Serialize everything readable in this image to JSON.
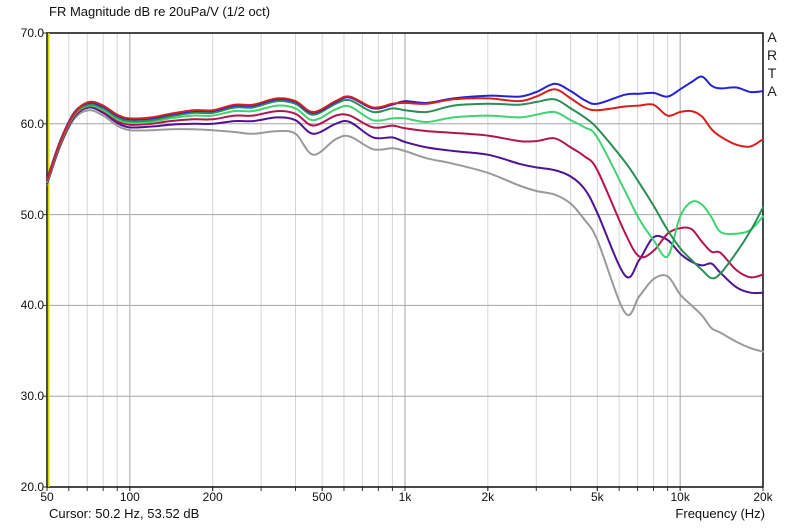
{
  "header": {
    "title": "FR Magnitude dB re 20uPa/V (1/2 oct)"
  },
  "watermark": {
    "letters": [
      "A",
      "R",
      "T",
      "A"
    ]
  },
  "footer": {
    "cursor_readout": "Cursor: 50.2 Hz, 53.52 dB",
    "axis_caption": "Frequency (Hz)"
  },
  "colors": {
    "background": "#ffffff",
    "plot_background": "#ffffff",
    "frame": "#1c1c1c",
    "grid_minor": "#d6d6d6",
    "grid_major": "#a6a6a6",
    "cursor_line": "#d4d400"
  },
  "chart_data": {
    "type": "line",
    "title": "FR Magnitude dB re 20uPa/V (1/2 oct)",
    "xlabel": "Frequency (Hz)",
    "ylabel": "FR Magnitude dB re 20uPa/V",
    "x_scale": "log",
    "xlim": [
      50,
      20000
    ],
    "ylim": [
      20,
      70
    ],
    "grid": "on",
    "legend": "none",
    "smoothing": "1/2 oct",
    "cursor": {
      "freq_hz": 50.2,
      "db": 53.52
    },
    "x_ticks": [
      {
        "f": 50,
        "label": "50"
      },
      {
        "f": 100,
        "label": "100"
      },
      {
        "f": 200,
        "label": "200"
      },
      {
        "f": 500,
        "label": "500"
      },
      {
        "f": 1000,
        "label": "1k"
      },
      {
        "f": 2000,
        "label": "2k"
      },
      {
        "f": 5000,
        "label": "5k"
      },
      {
        "f": 10000,
        "label": "10k"
      },
      {
        "f": 20000,
        "label": "20k"
      }
    ],
    "y_ticks": [
      {
        "db": 70,
        "label": "70.0"
      },
      {
        "db": 60,
        "label": "60.0"
      },
      {
        "db": 50,
        "label": "50.0"
      },
      {
        "db": 40,
        "label": "40.0"
      },
      {
        "db": 30,
        "label": "30.0"
      },
      {
        "db": 20,
        "label": "20.0"
      }
    ],
    "minor_grid_freqs": [
      60,
      70,
      80,
      90,
      200,
      300,
      400,
      500,
      600,
      700,
      800,
      900,
      2000,
      3000,
      4000,
      5000,
      6000,
      7000,
      8000,
      9000
    ],
    "major_grid_freqs": [
      100,
      1000,
      10000
    ],
    "major_grid_db": [
      30,
      40,
      50,
      60
    ],
    "x": [
      50,
      56,
      63,
      71,
      80,
      90,
      100,
      120,
      140,
      170,
      200,
      240,
      280,
      343,
      400,
      464,
      560,
      630,
      765,
      900,
      1000,
      1200,
      1500,
      2000,
      2600,
      3000,
      3500,
      4000,
      4500,
      5000,
      6300,
      7100,
      8000,
      9000,
      10000,
      11000,
      12000,
      13000,
      14000,
      16000,
      18000,
      20000
    ],
    "series": [
      {
        "name": "gray",
        "color": "#9a9a9a",
        "values": [
          53.3,
          57.6,
          60.6,
          61.5,
          60.9,
          59.8,
          59.3,
          59.3,
          59.4,
          59.4,
          59.3,
          59.1,
          58.9,
          59.2,
          58.9,
          56.6,
          58.3,
          58.6,
          57.2,
          57.3,
          57.0,
          56.2,
          55.6,
          54.6,
          53.2,
          52.6,
          52.2,
          51.2,
          49.4,
          47.2,
          39.2,
          41.0,
          42.9,
          43.2,
          41.2,
          40.0,
          38.9,
          37.5,
          37.0,
          36.0,
          35.3,
          34.9
        ]
      },
      {
        "name": "purple",
        "color": "#4f1292",
        "values": [
          53.4,
          57.7,
          60.8,
          61.8,
          61.2,
          60.1,
          59.6,
          59.7,
          59.9,
          60.0,
          60.0,
          60.3,
          60.3,
          60.7,
          60.4,
          58.9,
          60.0,
          60.2,
          58.5,
          58.5,
          58.0,
          57.4,
          57.0,
          56.6,
          55.6,
          55.2,
          54.9,
          54.2,
          52.8,
          50.2,
          43.3,
          45.0,
          47.5,
          47.2,
          45.7,
          44.8,
          44.4,
          44.6,
          43.6,
          42.0,
          41.4,
          41.4
        ]
      },
      {
        "name": "crimson",
        "color": "#b5134f",
        "values": [
          53.5,
          57.8,
          60.9,
          61.9,
          61.4,
          60.3,
          59.9,
          60.0,
          60.3,
          60.5,
          60.5,
          60.9,
          60.9,
          61.4,
          61.1,
          59.8,
          60.9,
          60.9,
          59.6,
          59.8,
          59.5,
          59.2,
          59.0,
          58.7,
          58.1,
          58.1,
          58.4,
          57.4,
          56.4,
          54.9,
          48.0,
          45.4,
          46.0,
          47.9,
          48.5,
          48.4,
          47.0,
          45.9,
          45.8,
          43.9,
          43.1,
          43.4
        ]
      },
      {
        "name": "light-green",
        "color": "#3ed474",
        "values": [
          53.6,
          57.9,
          61.0,
          62.0,
          61.5,
          60.5,
          60.1,
          60.2,
          60.6,
          60.9,
          60.9,
          61.4,
          61.4,
          62.0,
          61.7,
          60.4,
          61.6,
          61.9,
          60.4,
          60.6,
          60.6,
          60.2,
          60.7,
          60.9,
          60.7,
          61.0,
          61.3,
          60.4,
          59.6,
          58.5,
          52.6,
          49.5,
          47.2,
          45.4,
          49.8,
          51.4,
          51.1,
          49.7,
          48.1,
          47.9,
          48.3,
          49.8
        ]
      },
      {
        "name": "dark-green",
        "color": "#2a8f55",
        "values": [
          53.7,
          58.0,
          61.1,
          62.1,
          61.7,
          60.7,
          60.3,
          60.4,
          60.8,
          61.2,
          61.2,
          61.8,
          61.8,
          62.5,
          62.2,
          61.0,
          62.2,
          62.6,
          61.3,
          61.7,
          61.5,
          61.3,
          62.0,
          62.2,
          62.1,
          62.4,
          62.7,
          61.7,
          60.7,
          59.5,
          55.8,
          53.5,
          51.0,
          48.3,
          46.3,
          45.0,
          43.9,
          43.0,
          43.5,
          45.8,
          48.2,
          50.8
        ]
      },
      {
        "name": "blue",
        "color": "#2222d6",
        "values": [
          53.9,
          58.2,
          61.3,
          62.3,
          61.9,
          60.9,
          60.5,
          60.6,
          61.0,
          61.4,
          61.4,
          62.0,
          62.0,
          62.7,
          62.4,
          61.2,
          62.4,
          62.9,
          61.7,
          62.1,
          62.5,
          62.3,
          62.8,
          63.1,
          63.0,
          63.5,
          64.4,
          63.6,
          62.6,
          62.2,
          63.2,
          63.3,
          63.4,
          63.0,
          63.8,
          64.6,
          65.2,
          64.2,
          63.9,
          64.0,
          63.5,
          63.6
        ]
      },
      {
        "name": "red",
        "color": "#d62020",
        "values": [
          53.8,
          58.1,
          61.2,
          62.4,
          62.0,
          61.0,
          60.6,
          60.7,
          61.1,
          61.5,
          61.5,
          62.1,
          62.1,
          62.8,
          62.5,
          61.3,
          62.5,
          63.0,
          61.8,
          62.2,
          62.3,
          62.2,
          62.7,
          62.8,
          62.5,
          63.0,
          63.8,
          62.8,
          61.8,
          61.5,
          61.9,
          62.0,
          62.1,
          60.9,
          61.3,
          61.4,
          60.8,
          59.4,
          58.6,
          57.7,
          57.5,
          58.3
        ]
      }
    ]
  }
}
